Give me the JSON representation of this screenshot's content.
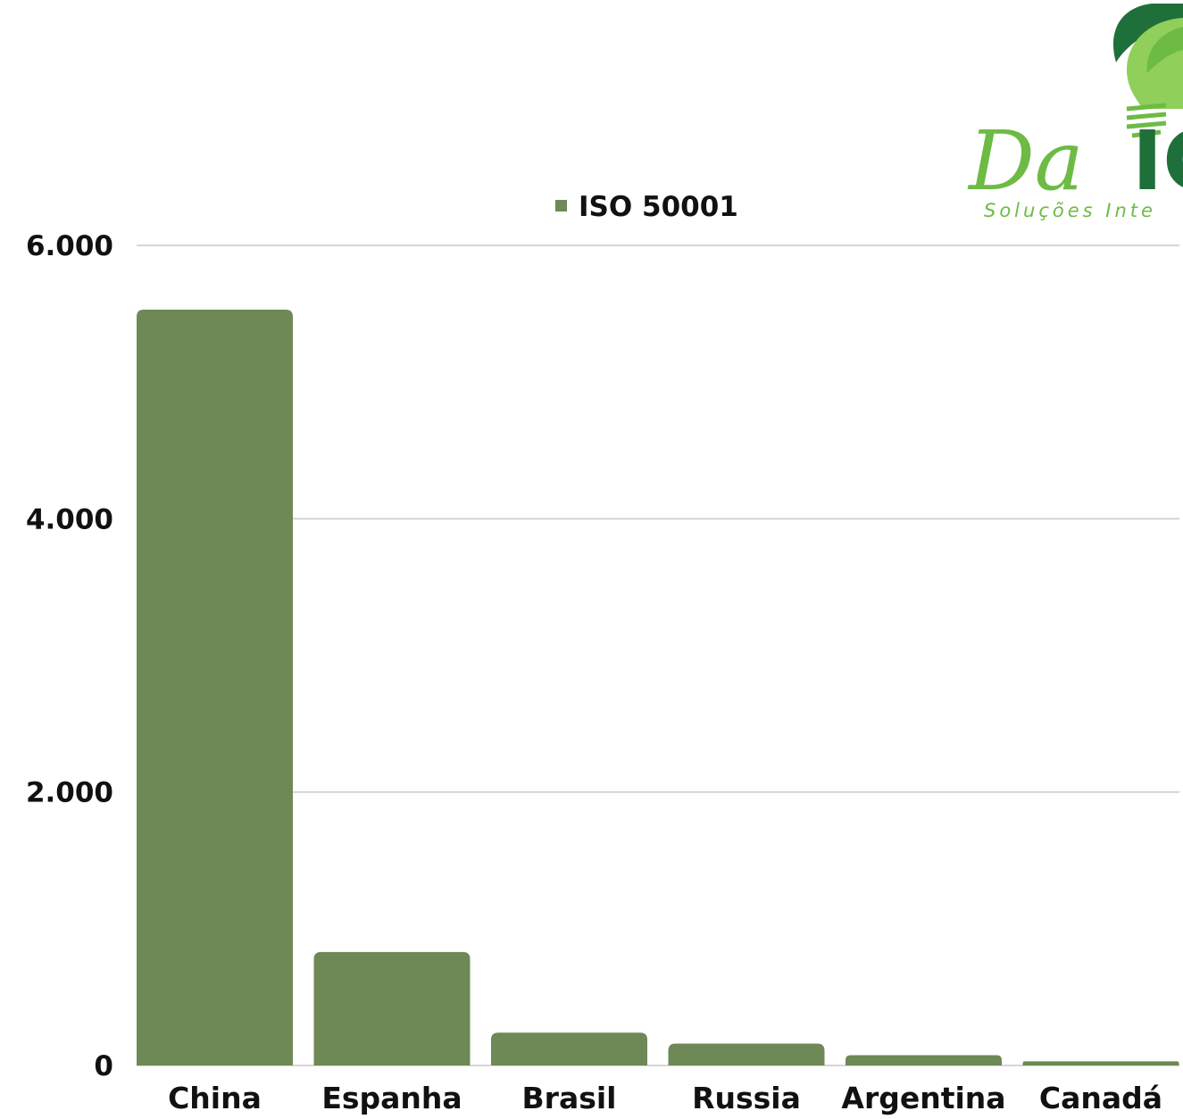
{
  "logo": {
    "script_text": "Da",
    "bold_text": "IC",
    "tagline": "Soluções Inte"
  },
  "colors": {
    "bar": "#6e8856",
    "grid": "#c8c8c8",
    "text": "#111111",
    "logo_light": "#6dbb45",
    "logo_dark": "#1f6f3a"
  },
  "chart_data": {
    "type": "bar",
    "categories": [
      "China",
      "Espanha",
      "Brasil",
      "Russia",
      "Argentina",
      "Canadá"
    ],
    "series": [
      {
        "name": "ISO 50001",
        "values": [
          5530,
          830,
          240,
          160,
          75,
          30
        ]
      }
    ],
    "ylim": [
      0,
      6000
    ],
    "yticks": [
      0,
      2000,
      4000,
      6000
    ],
    "ytick_labels": [
      "0",
      "2.000",
      "4.000",
      "6.000"
    ],
    "grid": true,
    "legend_position": "top",
    "title": "",
    "xlabel": "",
    "ylabel": ""
  }
}
